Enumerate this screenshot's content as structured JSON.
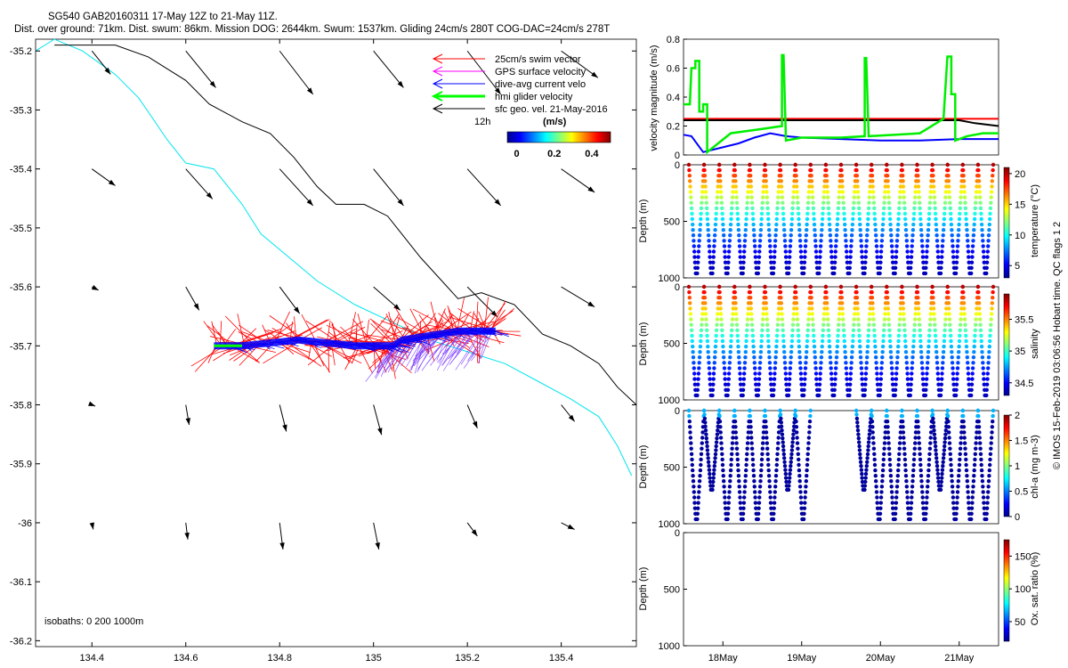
{
  "header": {
    "line1": "SG540 GAB20160311 17-May 12Z to 21-May 11Z.",
    "line2": "Dist. over ground: 71km. Dist. swum: 86km. Mission DOG: 2644km. Swum: 1537km. Gliding 24cm/s 280T COG-DAC=24cm/s 278T"
  },
  "side_note": "© IMOS 15-Feb-2019 03:06:56 Hobart time. QC flags 1  2",
  "chart_data": [
    {
      "type": "scatter",
      "panel": "map",
      "x_ticks": [
        "134.4",
        "134.6",
        "134.8",
        "135",
        "135.2",
        "135.4"
      ],
      "y_ticks": [
        "-35.2",
        "-35.3",
        "-35.4",
        "-35.5",
        "-35.6",
        "-35.7",
        "-35.8",
        "-35.9",
        "-36",
        "-36.1",
        "-36.2"
      ],
      "xlim": [
        134.28,
        135.56
      ],
      "ylim": [
        -36.21,
        -35.18
      ],
      "legend": {
        "placement": "top-right",
        "entries": [
          {
            "label": "25cm/s swim vector",
            "color": "#ff0000"
          },
          {
            "label": "GPS surface velocity",
            "color": "#ff00ff"
          },
          {
            "label": "dive-avg current velo",
            "color": "#0000ff"
          },
          {
            "label": "hmi glider velocity",
            "color": "#00ff00"
          },
          {
            "label": "sfc geo. vel. 21-May-2016",
            "color": "#000000"
          }
        ]
      },
      "scale_label": "12h",
      "colorbar": {
        "title": "(m/s)",
        "ticks": [
          "0",
          "0.2",
          "0.4"
        ],
        "range": [
          -0.05,
          0.5
        ]
      },
      "isobaths_label": "isobaths: 0   200  1000m",
      "isobath_1000m": [
        [
          134.32,
          -35.19
        ],
        [
          134.45,
          -35.19
        ],
        [
          134.52,
          -35.21
        ],
        [
          134.6,
          -35.25
        ],
        [
          134.65,
          -35.29
        ],
        [
          134.72,
          -35.32
        ],
        [
          134.78,
          -35.34
        ],
        [
          134.83,
          -35.38
        ],
        [
          134.88,
          -35.43
        ],
        [
          134.92,
          -35.46
        ],
        [
          134.98,
          -35.46
        ],
        [
          135.03,
          -35.48
        ],
        [
          135.1,
          -35.55
        ],
        [
          135.18,
          -35.62
        ],
        [
          135.23,
          -35.61
        ],
        [
          135.3,
          -35.63
        ],
        [
          135.36,
          -35.68
        ],
        [
          135.42,
          -35.7
        ],
        [
          135.48,
          -35.73
        ],
        [
          135.52,
          -35.77
        ],
        [
          135.56,
          -35.8
        ]
      ],
      "isobath_200m": [
        [
          134.28,
          -35.2
        ],
        [
          134.32,
          -35.18
        ],
        [
          134.38,
          -35.2
        ],
        [
          134.45,
          -35.24
        ],
        [
          134.5,
          -35.28
        ],
        [
          134.56,
          -35.35
        ],
        [
          134.6,
          -35.39
        ],
        [
          134.66,
          -35.4
        ],
        [
          134.72,
          -35.46
        ],
        [
          134.76,
          -35.51
        ],
        [
          134.82,
          -35.55
        ],
        [
          134.88,
          -35.59
        ],
        [
          134.96,
          -35.63
        ],
        [
          135.04,
          -35.66
        ],
        [
          135.12,
          -35.69
        ],
        [
          135.2,
          -35.71
        ],
        [
          135.28,
          -35.73
        ],
        [
          135.35,
          -35.76
        ],
        [
          135.42,
          -35.79
        ],
        [
          135.48,
          -35.82
        ],
        [
          135.52,
          -35.87
        ],
        [
          135.55,
          -35.92
        ]
      ],
      "glider_track": [
        [
          134.66,
          -35.7
        ],
        [
          134.72,
          -35.7
        ],
        [
          134.78,
          -35.695
        ],
        [
          134.84,
          -35.69
        ],
        [
          134.9,
          -35.695
        ],
        [
          134.96,
          -35.7
        ],
        [
          135.0,
          -35.7
        ],
        [
          135.04,
          -35.7
        ],
        [
          135.06,
          -35.69
        ],
        [
          135.1,
          -35.685
        ],
        [
          135.14,
          -35.68
        ],
        [
          135.18,
          -35.675
        ],
        [
          135.22,
          -35.675
        ],
        [
          135.26,
          -35.675
        ]
      ],
      "surface_geo_vectors": [
        [
          134.4,
          -35.2,
          0.28,
          -0.35
        ],
        [
          134.6,
          -35.2,
          0.45,
          -0.55
        ],
        [
          134.8,
          -35.2,
          0.5,
          -0.65
        ],
        [
          135.0,
          -35.2,
          0.45,
          -0.55
        ],
        [
          135.2,
          -35.2,
          0.5,
          -0.65
        ],
        [
          135.4,
          -35.2,
          0.55,
          -0.4
        ],
        [
          134.4,
          -35.4,
          0.35,
          -0.25
        ],
        [
          134.6,
          -35.4,
          0.4,
          -0.45
        ],
        [
          134.8,
          -35.4,
          0.5,
          -0.55
        ],
        [
          135.0,
          -35.4,
          0.45,
          -0.55
        ],
        [
          135.2,
          -35.4,
          0.5,
          -0.55
        ],
        [
          135.4,
          -35.4,
          0.5,
          -0.35
        ],
        [
          134.4,
          -35.6,
          0.1,
          -0.05
        ],
        [
          134.6,
          -35.6,
          0.2,
          -0.35
        ],
        [
          134.8,
          -35.6,
          0.3,
          -0.4
        ],
        [
          135.0,
          -35.6,
          0.4,
          -0.35
        ],
        [
          135.2,
          -35.6,
          0.45,
          -0.45
        ],
        [
          135.4,
          -35.6,
          0.5,
          -0.3
        ],
        [
          134.4,
          -35.8,
          0.05,
          -0.02
        ],
        [
          134.6,
          -35.8,
          0.05,
          -0.3
        ],
        [
          134.8,
          -35.8,
          0.1,
          -0.4
        ],
        [
          135.0,
          -35.8,
          0.12,
          -0.45
        ],
        [
          135.2,
          -35.8,
          0.15,
          -0.35
        ],
        [
          135.4,
          -35.8,
          0.2,
          -0.25
        ],
        [
          134.4,
          -36.0,
          0.02,
          -0.1
        ],
        [
          134.6,
          -36.0,
          0.03,
          -0.25
        ],
        [
          134.8,
          -36.0,
          0.05,
          -0.4
        ],
        [
          135.0,
          -36.0,
          0.08,
          -0.4
        ],
        [
          135.2,
          -36.0,
          0.15,
          -0.2
        ],
        [
          135.4,
          -36.0,
          0.2,
          -0.1
        ]
      ]
    },
    {
      "type": "line",
      "panel": "velocity",
      "ylabel": "velocity magnitude (m/s)",
      "y_ticks": [
        "0",
        "0.2",
        "0.4",
        "0.6",
        "0.8"
      ],
      "ylim": [
        0,
        0.8
      ],
      "xlim": [
        17.5,
        21.5
      ],
      "series": [
        {
          "color": "#ff0000",
          "values": [
            [
              17.5,
              0.25
            ],
            [
              21.5,
              0.25
            ]
          ]
        },
        {
          "color": "#000000",
          "values": [
            [
              17.5,
              0.24
            ],
            [
              21.0,
              0.24
            ],
            [
              21.2,
              0.22
            ],
            [
              21.5,
              0.2
            ]
          ]
        },
        {
          "color": "#0000ff",
          "values": [
            [
              17.5,
              0.14
            ],
            [
              17.6,
              0.13
            ],
            [
              17.75,
              0.02
            ],
            [
              17.9,
              0.04
            ],
            [
              18.2,
              0.08
            ],
            [
              18.4,
              0.12
            ],
            [
              18.6,
              0.15
            ],
            [
              18.8,
              0.13
            ],
            [
              19.0,
              0.12
            ],
            [
              19.5,
              0.11
            ],
            [
              20.0,
              0.1
            ],
            [
              20.5,
              0.1
            ],
            [
              21.0,
              0.11
            ],
            [
              21.5,
              0.11
            ]
          ]
        },
        {
          "color": "#00ee00",
          "values": [
            [
              17.5,
              0.35
            ],
            [
              17.58,
              0.35
            ],
            [
              17.6,
              0.6
            ],
            [
              17.65,
              0.6
            ],
            [
              17.65,
              0.65
            ],
            [
              17.7,
              0.65
            ],
            [
              17.7,
              0.3
            ],
            [
              17.75,
              0.3
            ],
            [
              17.75,
              0.35
            ],
            [
              17.8,
              0.35
            ],
            [
              17.8,
              0.02
            ],
            [
              18.1,
              0.15
            ],
            [
              18.5,
              0.18
            ],
            [
              18.75,
              0.2
            ],
            [
              18.75,
              0.69
            ],
            [
              18.77,
              0.69
            ],
            [
              18.8,
              0.1
            ],
            [
              19.0,
              0.12
            ],
            [
              19.5,
              0.12
            ],
            [
              19.8,
              0.13
            ],
            [
              19.8,
              0.67
            ],
            [
              19.82,
              0.67
            ],
            [
              19.85,
              0.13
            ],
            [
              20.2,
              0.14
            ],
            [
              20.5,
              0.15
            ],
            [
              20.8,
              0.25
            ],
            [
              20.85,
              0.68
            ],
            [
              20.9,
              0.68
            ],
            [
              20.9,
              0.42
            ],
            [
              20.95,
              0.42
            ],
            [
              20.95,
              0.1
            ],
            [
              21.1,
              0.13
            ],
            [
              21.3,
              0.15
            ],
            [
              21.5,
              0.15
            ]
          ]
        }
      ]
    },
    {
      "type": "scatter",
      "panel": "temperature",
      "ylabel": "Depth (m)",
      "y_ticks": [
        "0",
        "500",
        "1000"
      ],
      "ylim": [
        1000,
        0
      ],
      "colorbar": {
        "label": "temperature (°C)",
        "ticks": [
          "5",
          "10",
          "15",
          "20"
        ],
        "range": [
          3,
          21
        ]
      },
      "dives": 20,
      "surface_value": 20,
      "bottom_value": 4
    },
    {
      "type": "scatter",
      "panel": "salinity",
      "ylabel": "Depth (m)",
      "y_ticks": [
        "0",
        "500",
        "1000"
      ],
      "ylim": [
        1000,
        0
      ],
      "colorbar": {
        "label": "salinity",
        "ticks": [
          "34.5",
          "35",
          "35.5"
        ],
        "range": [
          34.3,
          35.9
        ]
      },
      "dives": 20,
      "surface_value": 35.8,
      "bottom_value": 34.4
    },
    {
      "type": "scatter",
      "panel": "chlorophyll",
      "ylabel": "Depth (m)",
      "y_ticks": [
        "0",
        "500",
        "1000"
      ],
      "ylim": [
        1000,
        0
      ],
      "colorbar": {
        "label": "chl-a (mg m-3)",
        "ticks": [
          "0",
          "0.5",
          "1",
          "1.5",
          "2"
        ],
        "range": [
          0,
          2
        ]
      },
      "dive_gap": [
        18.95,
        19.7
      ],
      "surface_value": 0.6,
      "bottom_value": 0.05
    },
    {
      "type": "scatter",
      "panel": "oxygen",
      "ylabel": "Depth (m)",
      "y_ticks": [
        "0",
        "500",
        "1000"
      ],
      "ylim": [
        1000,
        0
      ],
      "x_ticks": [
        "18May",
        "19May",
        "20May",
        "21May"
      ],
      "colorbar": {
        "label": "Ox. sat. ratio (%)",
        "ticks": [
          "50",
          "100",
          "150"
        ],
        "range": [
          20,
          175
        ]
      }
    }
  ]
}
